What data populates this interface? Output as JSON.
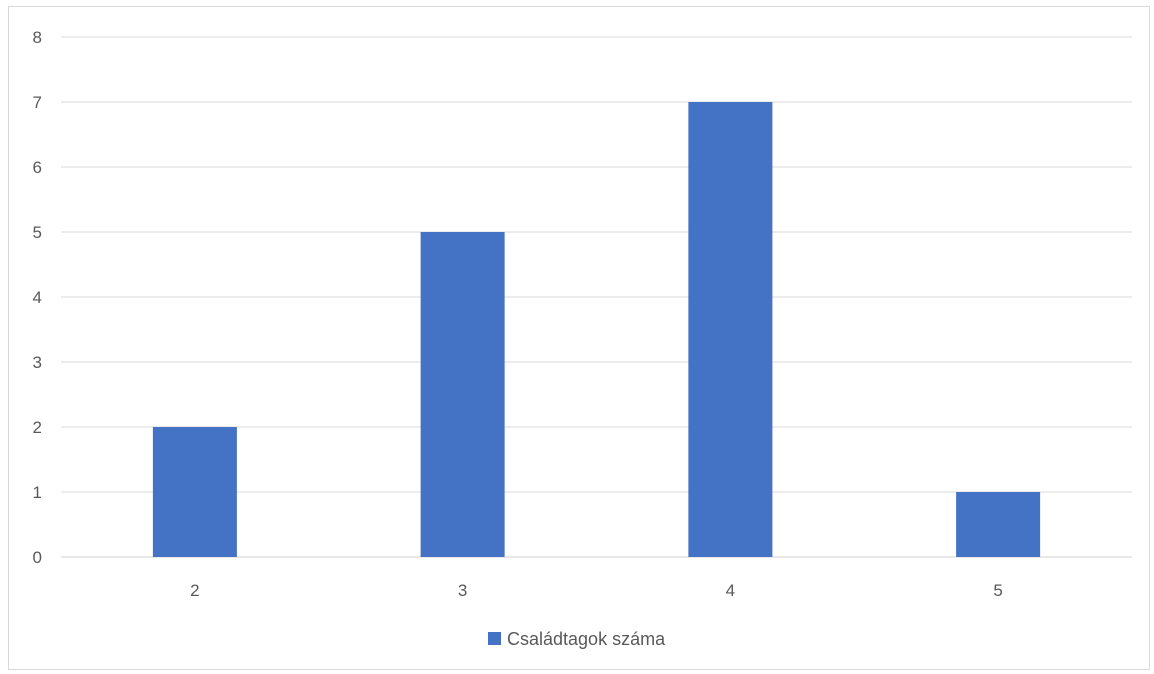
{
  "chart_data": {
    "type": "bar",
    "categories": [
      "2",
      "3",
      "4",
      "5"
    ],
    "series": [
      {
        "name": "Családtagok száma",
        "values": [
          2,
          5,
          7,
          1
        ],
        "color": "#4472c4"
      }
    ],
    "title": "",
    "xlabel": "",
    "ylabel": "",
    "ylim": [
      0,
      8
    ],
    "yticks": [
      0,
      1,
      2,
      3,
      4,
      5,
      6,
      7,
      8
    ],
    "grid": true,
    "legend": "bottom"
  }
}
